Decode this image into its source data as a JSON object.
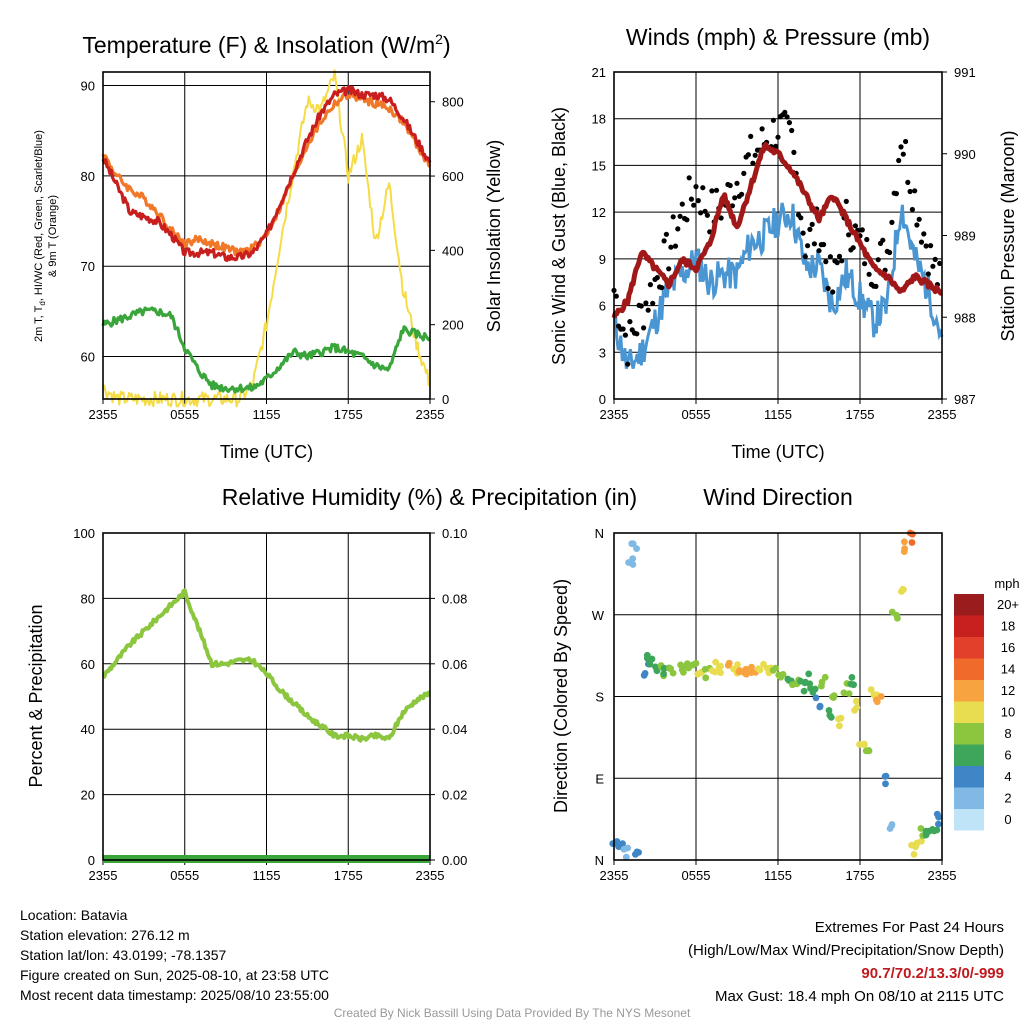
{
  "chart_data": [
    {
      "type": "line",
      "title": "Temperature (F) & Insolation (W/m²)",
      "xlabel": "Time (UTC)",
      "ylabel": "2m T, Td, HI/WC (Red, Green, Scarlet/Blue) & 9m T (Orange)",
      "ylabel_line1": "2m T, T",
      "ylabel_sub": "d",
      "ylabel_line1_end": ", HI/WC (Red, Green, Scarlet/Blue)",
      "ylabel_line2": "& 9m T (Orange)",
      "y2label": "Solar Insolation (Yellow)",
      "x_ticks": [
        "2355",
        "0555",
        "1155",
        "1755",
        "2355"
      ],
      "ylim": [
        55.3,
        91.5
      ],
      "y_ticks": [
        60,
        70,
        80,
        90
      ],
      "y2lim": [
        0,
        880
      ],
      "y2_ticks": [
        0,
        200,
        400,
        600,
        800
      ],
      "grid": true,
      "x_hours": [
        0,
        1,
        2,
        3,
        4,
        5,
        6,
        7,
        8,
        9,
        10,
        11,
        12,
        13,
        14,
        15,
        16,
        17,
        18,
        19,
        20,
        21,
        22,
        23,
        24
      ],
      "series": [
        {
          "color": "#c81e1e",
          "axis": "left",
          "values": [
            82,
            79,
            76,
            75.5,
            75,
            73.5,
            71.5,
            71.5,
            71.5,
            71,
            71,
            71.5,
            73.5,
            77,
            80.5,
            84,
            87,
            89,
            89.5,
            89,
            89,
            88.5,
            86.5,
            84,
            81.5
          ]
        },
        {
          "color": "#f07828",
          "axis": "left",
          "values": [
            82.5,
            80,
            78.5,
            77.5,
            76,
            74,
            72.5,
            73,
            72.5,
            72,
            71.5,
            72,
            73.5,
            76.5,
            80,
            83.5,
            86,
            88,
            89,
            88.5,
            88,
            87.5,
            86,
            83.5,
            81
          ]
        },
        {
          "color": "#3aa53a",
          "axis": "left",
          "values": [
            63.5,
            64,
            64.5,
            65,
            65,
            64.5,
            61,
            58.5,
            56.8,
            56.5,
            56.5,
            56.5,
            57.5,
            59,
            60.5,
            60,
            60.5,
            61,
            60.5,
            60,
            59,
            58.5,
            63,
            62.5,
            62
          ]
        },
        {
          "color": "#f5dc46",
          "axis": "right",
          "values": [
            30,
            2,
            0,
            0,
            0,
            0,
            0,
            0,
            0,
            0,
            0,
            40,
            200,
            420,
            620,
            800,
            780,
            870,
            600,
            700,
            420,
            580,
            300,
            150,
            40
          ]
        }
      ]
    },
    {
      "type": "line",
      "title": "Winds (mph) & Pressure (mb)",
      "xlabel": "Time (UTC)",
      "ylabel": "Sonic Wind & Gust (Blue, Black)",
      "y2label": "Station Pressure (Maroon)",
      "x_ticks": [
        "2355",
        "0555",
        "1155",
        "1755",
        "2355"
      ],
      "ylim": [
        0,
        21
      ],
      "y_ticks": [
        0,
        3,
        6,
        9,
        12,
        15,
        18,
        21
      ],
      "y2lim": [
        987,
        991
      ],
      "y2_ticks": [
        987,
        988,
        989,
        990,
        991
      ],
      "grid": true,
      "x_hours": [
        0,
        1,
        2,
        3,
        4,
        5,
        6,
        7,
        8,
        9,
        10,
        11,
        12,
        13,
        14,
        15,
        16,
        17,
        18,
        19,
        20,
        21,
        22,
        23,
        24
      ],
      "series": [
        {
          "color": "#4a96d2",
          "axis": "left",
          "type": "line",
          "values": [
            5,
            2,
            3,
            5,
            7,
            8,
            9,
            7.5,
            8,
            8,
            10,
            10.5,
            11.5,
            12,
            8.5,
            8.5,
            6,
            8,
            6.5,
            5,
            6,
            12.5,
            9,
            7,
            4
          ]
        },
        {
          "color": "#000000",
          "axis": "left",
          "type": "scatter",
          "values": [
            7,
            3.5,
            5.5,
            7.5,
            9.5,
            12,
            13.5,
            12,
            12.5,
            14,
            15.5,
            16.5,
            17.5,
            16.5,
            10,
            11,
            7,
            11.5,
            10,
            8.5,
            9.5,
            17,
            13,
            9.5,
            7
          ]
        },
        {
          "color": "#a01818",
          "axis": "right",
          "type": "line",
          "values": [
            988,
            988.2,
            988.8,
            988.6,
            988.4,
            988.7,
            988.6,
            988.9,
            989.5,
            989.1,
            989.6,
            990.1,
            990,
            989.8,
            989.5,
            989.2,
            989.5,
            989.2,
            988.9,
            988.6,
            988.5,
            988.3,
            988.5,
            988.4,
            988.3
          ]
        }
      ]
    },
    {
      "type": "line",
      "title": "Relative Humidity (%) & Precipitation (in)",
      "ylabel": "Percent & Precipitation",
      "x_ticks": [
        "2355",
        "0555",
        "1155",
        "1755",
        "2355"
      ],
      "ylim": [
        0,
        100
      ],
      "y_ticks": [
        0,
        20,
        40,
        60,
        80,
        100
      ],
      "y2lim": [
        0,
        0.1
      ],
      "y2_ticks": [
        "0.00",
        "0.02",
        "0.04",
        "0.06",
        "0.08",
        "0.10"
      ],
      "grid": true,
      "x_hours": [
        0,
        1,
        2,
        3,
        4,
        5,
        6,
        7,
        8,
        9,
        10,
        11,
        12,
        13,
        14,
        15,
        16,
        17,
        18,
        19,
        20,
        21,
        22,
        23,
        24
      ],
      "series": [
        {
          "color": "#8cc63f",
          "axis": "left",
          "values": [
            56,
            61,
            66,
            70,
            74,
            78,
            82,
            71,
            60,
            60,
            61,
            61,
            57,
            52,
            48,
            44,
            41,
            38,
            38,
            37,
            38,
            37,
            45,
            49,
            51
          ]
        },
        {
          "color": "#3aa53a",
          "axis": "right",
          "values": [
            0,
            0,
            0,
            0,
            0,
            0,
            0,
            0,
            0,
            0,
            0,
            0,
            0,
            0,
            0,
            0,
            0,
            0,
            0,
            0,
            0,
            0,
            0,
            0,
            0
          ]
        }
      ]
    },
    {
      "type": "scatter",
      "title": "Wind Direction",
      "ylabel": "Direction (Colored By Speed)",
      "x_ticks": [
        "2355",
        "0555",
        "1155",
        "1755",
        "2355"
      ],
      "y_ticks": [
        "N",
        "E",
        "S",
        "W",
        "N"
      ],
      "ylim": [
        0,
        360
      ],
      "grid": true,
      "colorbar_title": "mph",
      "colorbar_labels": [
        "20+",
        "18",
        "16",
        "14",
        "12",
        "10",
        "8",
        "6",
        "4",
        "2",
        "0"
      ],
      "colorbar_colors": [
        "#9b1c1c",
        "#c8201f",
        "#e2402a",
        "#f06a2c",
        "#f7a440",
        "#e8dc50",
        "#8cc63f",
        "#3ea65a",
        "#3f86c6",
        "#7fb9e4",
        "#bfe3f7"
      ],
      "points": [
        {
          "h": 0,
          "d": 22,
          "s": 3
        },
        {
          "h": 0.4,
          "d": 15,
          "s": 4
        },
        {
          "h": 0.8,
          "d": 10,
          "s": 2
        },
        {
          "h": 1.2,
          "d": 330,
          "s": 2
        },
        {
          "h": 1.5,
          "d": 345,
          "s": 1
        },
        {
          "h": 1.8,
          "d": 8,
          "s": 4
        },
        {
          "h": 2.3,
          "d": 210,
          "s": 4
        },
        {
          "h": 2.6,
          "d": 220,
          "s": 5
        },
        {
          "h": 3.0,
          "d": 215,
          "s": 6
        },
        {
          "h": 3.4,
          "d": 208,
          "s": 7
        },
        {
          "h": 3.8,
          "d": 205,
          "s": 5
        },
        {
          "h": 4.3,
          "d": 212,
          "s": 7
        },
        {
          "h": 4.8,
          "d": 213,
          "s": 8
        },
        {
          "h": 5.3,
          "d": 210,
          "s": 7
        },
        {
          "h": 5.8,
          "d": 212,
          "s": 8
        },
        {
          "h": 6.3,
          "d": 210,
          "s": 9
        },
        {
          "h": 6.8,
          "d": 205,
          "s": 7
        },
        {
          "h": 7.3,
          "d": 212,
          "s": 10
        },
        {
          "h": 7.8,
          "d": 210,
          "s": 9
        },
        {
          "h": 8.3,
          "d": 214,
          "s": 11
        },
        {
          "h": 8.8,
          "d": 212,
          "s": 10
        },
        {
          "h": 9.3,
          "d": 213,
          "s": 11
        },
        {
          "h": 9.8,
          "d": 211,
          "s": 12
        },
        {
          "h": 10.3,
          "d": 212,
          "s": 11
        },
        {
          "h": 10.8,
          "d": 210,
          "s": 10
        },
        {
          "h": 11.3,
          "d": 212,
          "s": 9
        },
        {
          "h": 11.8,
          "d": 210,
          "s": 8
        },
        {
          "h": 12.3,
          "d": 200,
          "s": 7
        },
        {
          "h": 12.8,
          "d": 195,
          "s": 6
        },
        {
          "h": 13.3,
          "d": 192,
          "s": 7
        },
        {
          "h": 13.8,
          "d": 190,
          "s": 6
        },
        {
          "h": 14.2,
          "d": 200,
          "s": 5
        },
        {
          "h": 14.6,
          "d": 185,
          "s": 5
        },
        {
          "h": 15.0,
          "d": 175,
          "s": 4
        },
        {
          "h": 15.4,
          "d": 195,
          "s": 7
        },
        {
          "h": 15.8,
          "d": 160,
          "s": 6
        },
        {
          "h": 16.2,
          "d": 185,
          "s": 8
        },
        {
          "h": 16.6,
          "d": 150,
          "s": 9
        },
        {
          "h": 17.0,
          "d": 190,
          "s": 7
        },
        {
          "h": 17.4,
          "d": 200,
          "s": 6
        },
        {
          "h": 17.8,
          "d": 170,
          "s": 10
        },
        {
          "h": 18.2,
          "d": 125,
          "s": 9
        },
        {
          "h": 18.6,
          "d": 115,
          "s": 8
        },
        {
          "h": 19.0,
          "d": 185,
          "s": 9
        },
        {
          "h": 19.4,
          "d": 180,
          "s": 11
        },
        {
          "h": 19.8,
          "d": 90,
          "s": 4
        },
        {
          "h": 20.2,
          "d": 40,
          "s": 2
        },
        {
          "h": 20.6,
          "d": 270,
          "s": 7
        },
        {
          "h": 21.0,
          "d": 300,
          "s": 9
        },
        {
          "h": 21.3,
          "d": 345,
          "s": 12
        },
        {
          "h": 21.6,
          "d": 355,
          "s": 13
        },
        {
          "h": 22.0,
          "d": 10,
          "s": 10
        },
        {
          "h": 22.3,
          "d": 18,
          "s": 9
        },
        {
          "h": 22.6,
          "d": 28,
          "s": 8
        },
        {
          "h": 23.0,
          "d": 32,
          "s": 6
        },
        {
          "h": 23.4,
          "d": 38,
          "s": 5
        },
        {
          "h": 23.8,
          "d": 45,
          "s": 4
        }
      ]
    }
  ],
  "info": {
    "location": "Location: Batavia",
    "elevation": "Station elevation: 276.12 m",
    "latlon": "Station lat/lon: 43.0199; -78.1357",
    "created": "Figure created on Sun, 2025-08-10, at 23:58 UTC",
    "recent": "Most recent data timestamp: 2025/08/10 23:55:00"
  },
  "extremes": {
    "title": "Extremes For Past 24 Hours",
    "subtitle": "(High/Low/Max Wind/Precipitation/Snow Depth)",
    "values": "90.7/70.2/13.3/0/-999",
    "gust": "Max Gust: 18.4 mph On 08/10 at 2115 UTC"
  },
  "footer": "Created By Nick Bassill Using Data Provided By The NYS Mesonet"
}
